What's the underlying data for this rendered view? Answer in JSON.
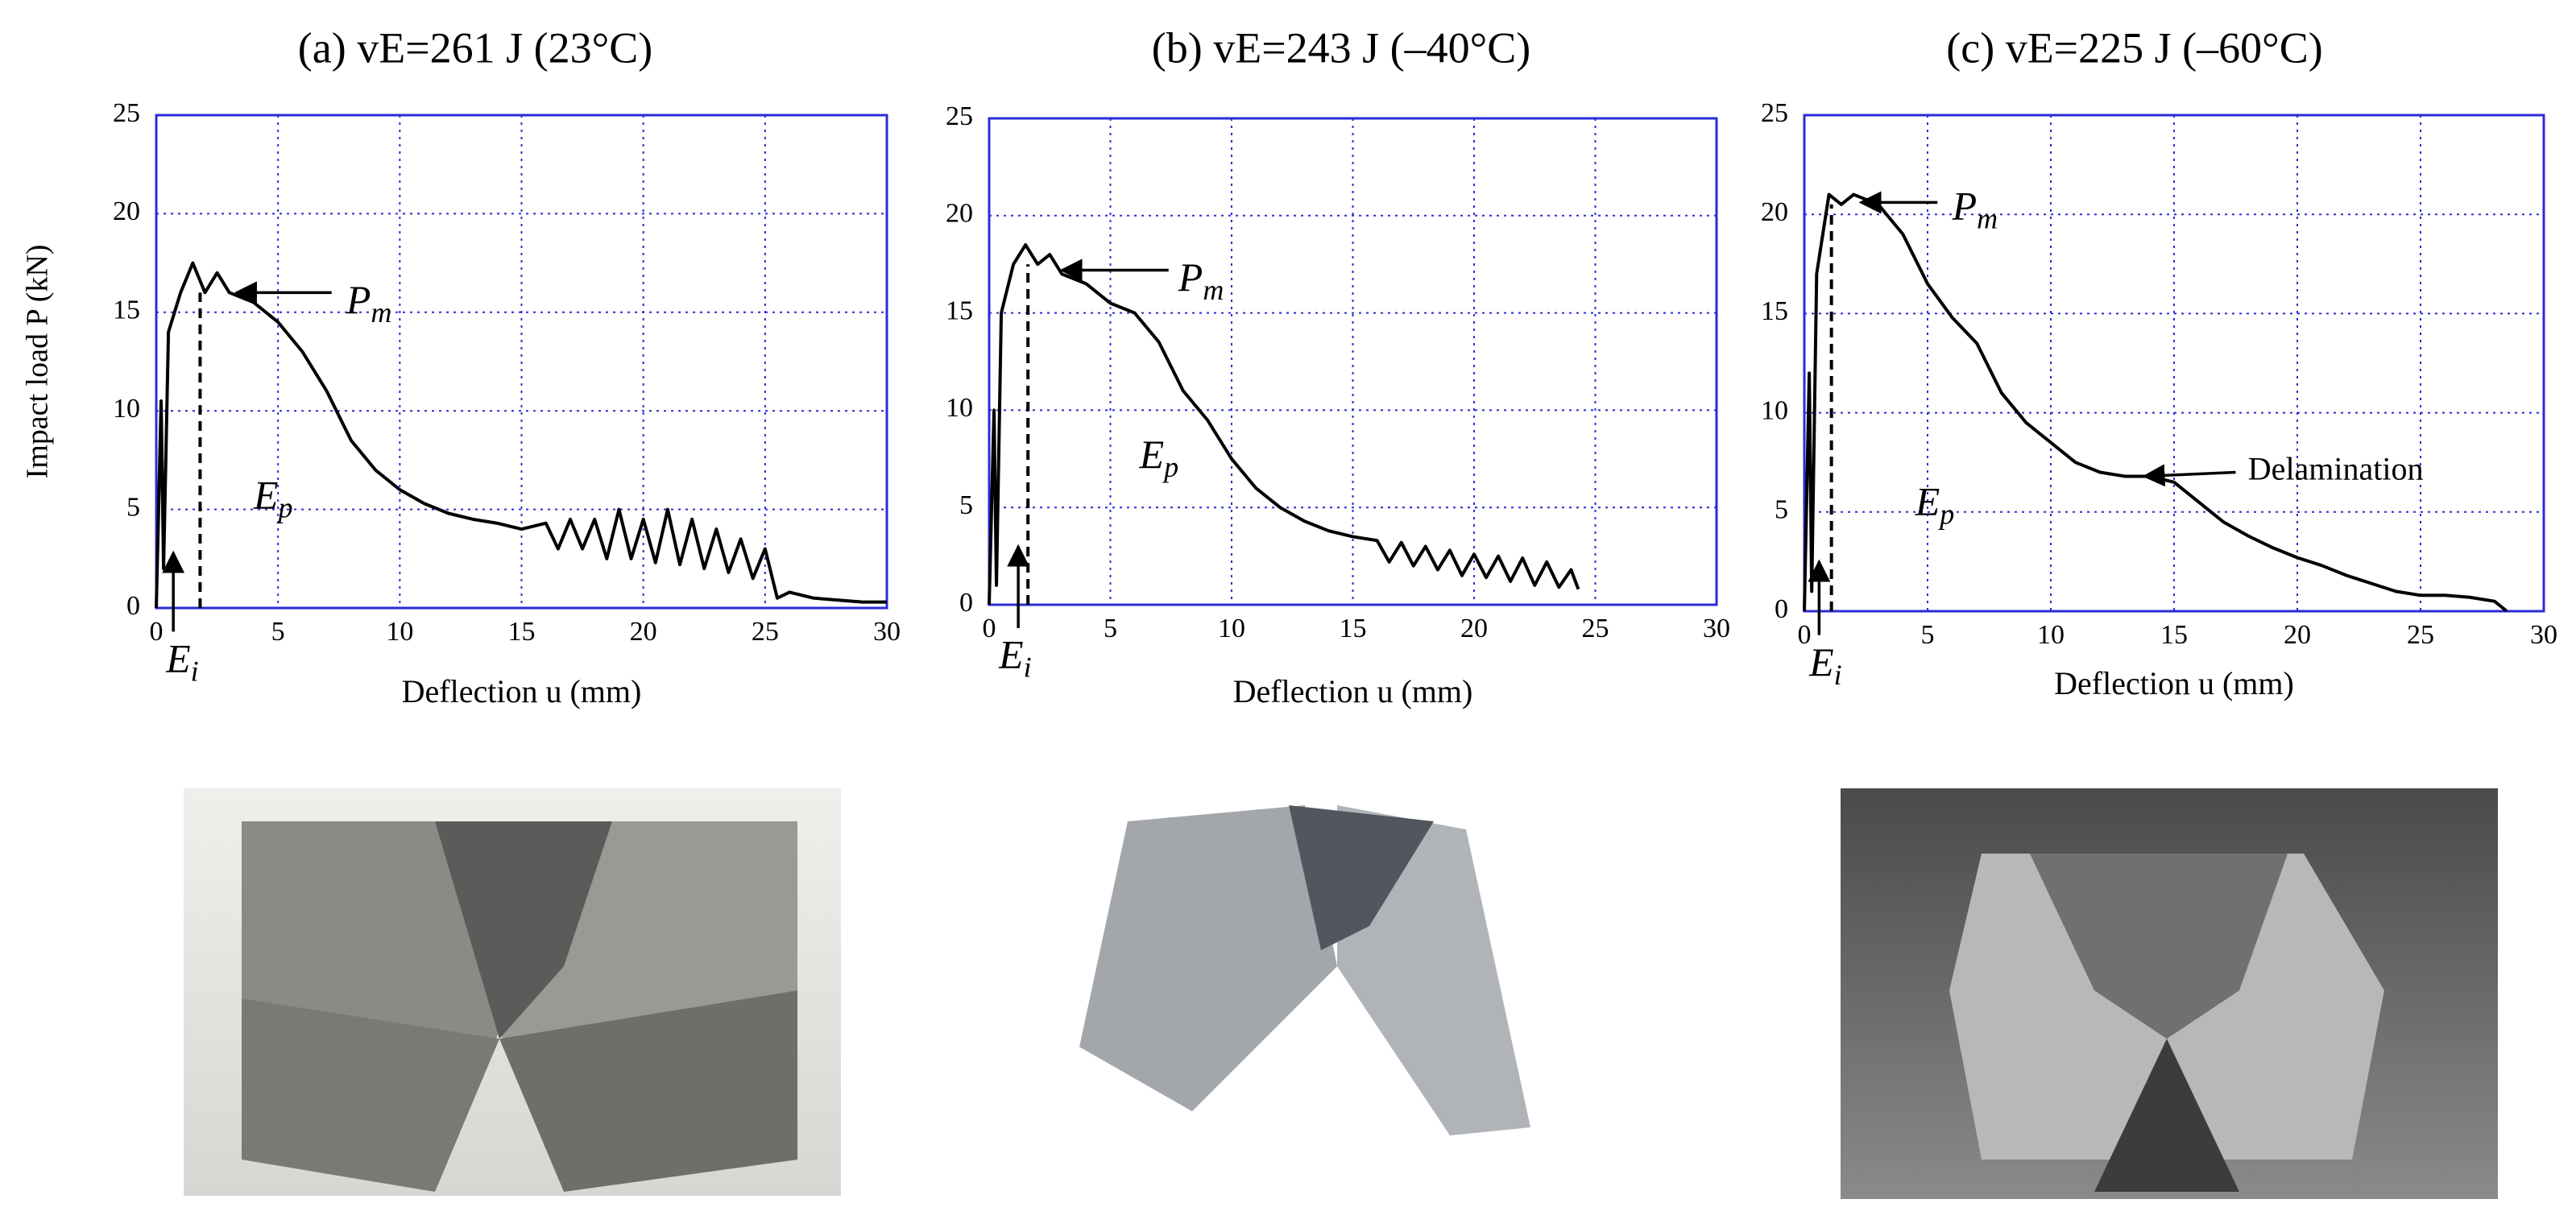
{
  "chart_data": [
    {
      "type": "line",
      "title": "(a) vE=261 J (23°C)",
      "xlabel": "Deflection u (mm)",
      "ylabel": "Impact load P (kN)",
      "x": [
        0,
        0.2,
        0.3,
        0.5,
        1,
        1.5,
        2,
        2.5,
        3,
        4,
        5,
        6,
        7,
        8,
        9,
        10,
        11,
        12,
        13,
        14,
        15,
        16,
        16.5,
        17,
        17.5,
        18,
        18.5,
        19,
        19.5,
        20,
        20.5,
        21,
        21.5,
        22,
        22.5,
        23,
        23.5,
        24,
        24.5,
        25,
        25.5,
        26,
        27,
        28,
        29,
        30
      ],
      "values": [
        0,
        10.5,
        2,
        14,
        16,
        17.5,
        16,
        17,
        16,
        15.5,
        14.5,
        13,
        11,
        8.5,
        7,
        6,
        5.3,
        4.8,
        4.5,
        4.3,
        4,
        4.3,
        3,
        4.5,
        3,
        4.5,
        2.5,
        5,
        2.5,
        4.5,
        2.3,
        5,
        2.2,
        4.5,
        2,
        4,
        1.8,
        3.5,
        1.5,
        3,
        0.5,
        0.8,
        0.5,
        0.4,
        0.3,
        0.3
      ],
      "color": "#000000",
      "xlim": [
        0,
        30
      ],
      "xticks": [
        0,
        5,
        10,
        15,
        20,
        25,
        30
      ],
      "ylim": [
        0,
        25
      ],
      "yticks": [
        0,
        5,
        10,
        15,
        20,
        25
      ],
      "grid": true,
      "annotations": [
        {
          "text": "P",
          "subscript": "m"
        },
        {
          "text": "E",
          "subscript": "p"
        },
        {
          "text": "E",
          "subscript": "i"
        }
      ]
    },
    {
      "type": "line",
      "title": "(b) vE=243 J (–40°C)",
      "xlabel": "Deflection u (mm)",
      "x": [
        0,
        0.2,
        0.3,
        0.5,
        1,
        1.5,
        2,
        2.5,
        3,
        4,
        5,
        6,
        7,
        8,
        9,
        10,
        11,
        12,
        13,
        14,
        15,
        16,
        16.5,
        17,
        17.5,
        18,
        18.5,
        19,
        19.5,
        20,
        20.5,
        21,
        21.5,
        22,
        22.5,
        23,
        23.5,
        24,
        24.3
      ],
      "values": [
        0,
        10,
        1,
        15,
        17.5,
        18.5,
        17.5,
        18,
        17,
        16.5,
        15.5,
        15,
        13.5,
        11,
        9.5,
        7.5,
        6,
        5,
        4.3,
        3.8,
        3.5,
        3.3,
        2.2,
        3.2,
        2,
        3,
        1.8,
        2.8,
        1.5,
        2.6,
        1.4,
        2.5,
        1.2,
        2.4,
        1,
        2.2,
        0.9,
        1.8,
        0.8
      ],
      "color": "#000000",
      "xlim": [
        0,
        30
      ],
      "xticks": [
        0,
        5,
        10,
        15,
        20,
        25,
        30
      ],
      "ylim": [
        0,
        25
      ],
      "yticks": [
        0,
        5,
        10,
        15,
        20,
        25
      ],
      "grid": true,
      "annotations": [
        {
          "text": "P",
          "subscript": "m"
        },
        {
          "text": "E",
          "subscript": "p"
        },
        {
          "text": "E",
          "subscript": "i"
        }
      ]
    },
    {
      "type": "line",
      "title": "(c) vE=225 J (–60°C)",
      "xlabel": "Deflection u (mm)",
      "x": [
        0,
        0.2,
        0.3,
        0.5,
        1,
        1.5,
        2,
        3,
        4,
        5,
        6,
        7,
        8,
        9,
        10,
        11,
        12,
        13,
        14,
        15,
        16,
        17,
        18,
        19,
        20,
        21,
        22,
        23,
        24,
        25,
        26,
        27,
        28,
        28.5
      ],
      "values": [
        0,
        12,
        1,
        17,
        21,
        20.5,
        21,
        20.5,
        19,
        16.5,
        14.8,
        13.5,
        11,
        9.5,
        8.5,
        7.5,
        7,
        6.8,
        6.8,
        6.5,
        5.5,
        4.5,
        3.8,
        3.2,
        2.7,
        2.3,
        1.8,
        1.4,
        1,
        0.8,
        0.8,
        0.7,
        0.5,
        0
      ],
      "color": "#000000",
      "xlim": [
        0,
        30
      ],
      "xticks": [
        0,
        5,
        10,
        15,
        20,
        25,
        30
      ],
      "ylim": [
        0,
        25
      ],
      "yticks": [
        0,
        5,
        10,
        15,
        20,
        25
      ],
      "grid": true,
      "annotations": [
        {
          "text": "P",
          "subscript": "m"
        },
        {
          "text": "E",
          "subscript": "p"
        },
        {
          "text": "E",
          "subscript": "i"
        },
        {
          "text": "Delamination"
        }
      ]
    }
  ]
}
